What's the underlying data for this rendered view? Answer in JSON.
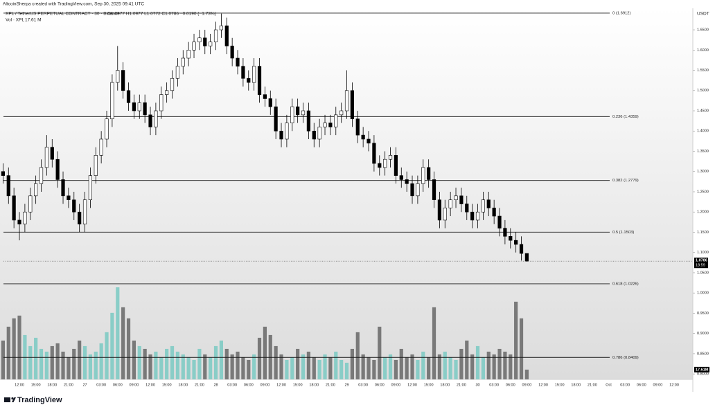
{
  "chart_data": {
    "type": "candlestick",
    "byline": "AltcoinSherpa created with TradingView.com, Sep 30, 2025 09:41 UTC",
    "symbol": "XPL / TetherUS PERPETUAL CONTRACT · 30 · Binance",
    "ohlc_legend": "O1.0977 H1.0977 L1.0772 C1.0786 −0.0190 (−1.73%)",
    "volume_legend": "Vol · XPL",
    "volume_legend_value": "17.61 M",
    "currency": "USDT",
    "countdown": "18:59",
    "last_volume_label": "17.61M",
    "brand": "TradingView",
    "up_color": "#ffffff",
    "down_color": "#000000",
    "border_color": "#000000",
    "volume_up_color": "#80cbc4",
    "volume_down_color": "#6e6e6e",
    "open": [
      1.3,
      1.29,
      1.24,
      1.18,
      1.17,
      1.2,
      1.24,
      1.27,
      1.31,
      1.36,
      1.33,
      1.28,
      1.24,
      1.23,
      1.2,
      1.17,
      1.23,
      1.29,
      1.34,
      1.38,
      1.43,
      1.52,
      1.55,
      1.5,
      1.47,
      1.45,
      1.47,
      1.44,
      1.41,
      1.45,
      1.49,
      1.5,
      1.53,
      1.56,
      1.58,
      1.6,
      1.62,
      1.63,
      1.61,
      1.62,
      1.65,
      1.66,
      1.61,
      1.58,
      1.56,
      1.53,
      1.52,
      1.56,
      1.49,
      1.48,
      1.46,
      1.4,
      1.38,
      1.42,
      1.46,
      1.44,
      1.45,
      1.4,
      1.38,
      1.41,
      1.42,
      1.41,
      1.44,
      1.45,
      1.5,
      1.43,
      1.39,
      1.38,
      1.37,
      1.32,
      1.31,
      1.33,
      1.34,
      1.29,
      1.28,
      1.27,
      1.24,
      1.27,
      1.31,
      1.28,
      1.23,
      1.18,
      1.21,
      1.23,
      1.24,
      1.22,
      1.2,
      1.18,
      1.2,
      1.23,
      1.21,
      1.19,
      1.16,
      1.14,
      1.13,
      1.12,
      1.0977
    ],
    "high": [
      1.32,
      1.31,
      1.26,
      1.2,
      1.22,
      1.26,
      1.29,
      1.33,
      1.39,
      1.38,
      1.35,
      1.3,
      1.26,
      1.25,
      1.22,
      1.25,
      1.31,
      1.36,
      1.4,
      1.45,
      1.54,
      1.61,
      1.57,
      1.52,
      1.49,
      1.49,
      1.49,
      1.46,
      1.47,
      1.51,
      1.52,
      1.55,
      1.58,
      1.6,
      1.62,
      1.64,
      1.65,
      1.65,
      1.64,
      1.67,
      1.69,
      1.68,
      1.63,
      1.6,
      1.58,
      1.55,
      1.58,
      1.58,
      1.51,
      1.5,
      1.48,
      1.42,
      1.44,
      1.48,
      1.48,
      1.47,
      1.47,
      1.42,
      1.43,
      1.44,
      1.44,
      1.46,
      1.47,
      1.55,
      1.52,
      1.45,
      1.41,
      1.4,
      1.39,
      1.34,
      1.35,
      1.36,
      1.36,
      1.31,
      1.3,
      1.29,
      1.29,
      1.33,
      1.33,
      1.3,
      1.25,
      1.23,
      1.25,
      1.26,
      1.26,
      1.24,
      1.22,
      1.22,
      1.25,
      1.25,
      1.23,
      1.21,
      1.18,
      1.16,
      1.15,
      1.14,
      1.0977
    ],
    "low": [
      1.27,
      1.22,
      1.16,
      1.13,
      1.15,
      1.18,
      1.22,
      1.25,
      1.29,
      1.31,
      1.26,
      1.22,
      1.21,
      1.18,
      1.15,
      1.15,
      1.21,
      1.27,
      1.32,
      1.36,
      1.41,
      1.5,
      1.48,
      1.45,
      1.43,
      1.43,
      1.42,
      1.39,
      1.39,
      1.43,
      1.47,
      1.48,
      1.51,
      1.54,
      1.56,
      1.58,
      1.6,
      1.59,
      1.59,
      1.6,
      1.63,
      1.59,
      1.56,
      1.54,
      1.51,
      1.5,
      1.5,
      1.47,
      1.46,
      1.44,
      1.38,
      1.36,
      1.36,
      1.4,
      1.42,
      1.42,
      1.38,
      1.36,
      1.36,
      1.39,
      1.39,
      1.39,
      1.42,
      1.43,
      1.41,
      1.37,
      1.36,
      1.35,
      1.3,
      1.29,
      1.29,
      1.31,
      1.27,
      1.26,
      1.25,
      1.22,
      1.22,
      1.25,
      1.26,
      1.21,
      1.16,
      1.16,
      1.19,
      1.21,
      1.2,
      1.18,
      1.16,
      1.16,
      1.18,
      1.19,
      1.17,
      1.14,
      1.12,
      1.11,
      1.1,
      1.08,
      1.0772
    ],
    "close": [
      1.29,
      1.24,
      1.18,
      1.17,
      1.2,
      1.24,
      1.27,
      1.31,
      1.36,
      1.33,
      1.28,
      1.24,
      1.23,
      1.2,
      1.17,
      1.23,
      1.29,
      1.34,
      1.38,
      1.43,
      1.52,
      1.55,
      1.5,
      1.47,
      1.45,
      1.47,
      1.44,
      1.41,
      1.45,
      1.49,
      1.5,
      1.53,
      1.56,
      1.58,
      1.6,
      1.62,
      1.63,
      1.61,
      1.62,
      1.65,
      1.66,
      1.61,
      1.58,
      1.56,
      1.53,
      1.52,
      1.56,
      1.49,
      1.48,
      1.46,
      1.4,
      1.38,
      1.42,
      1.46,
      1.44,
      1.45,
      1.4,
      1.38,
      1.41,
      1.42,
      1.41,
      1.44,
      1.45,
      1.5,
      1.43,
      1.39,
      1.38,
      1.37,
      1.32,
      1.31,
      1.33,
      1.34,
      1.29,
      1.28,
      1.27,
      1.24,
      1.27,
      1.31,
      1.28,
      1.23,
      1.18,
      1.21,
      1.23,
      1.24,
      1.22,
      1.2,
      1.18,
      1.2,
      1.23,
      1.21,
      1.19,
      1.16,
      1.14,
      1.13,
      1.12,
      1.0977,
      1.0786
    ],
    "volume": [
      70,
      95,
      110,
      115,
      80,
      60,
      75,
      55,
      50,
      60,
      65,
      50,
      40,
      55,
      70,
      60,
      45,
      50,
      65,
      85,
      120,
      166,
      130,
      110,
      70,
      60,
      55,
      45,
      50,
      40,
      55,
      60,
      50,
      45,
      40,
      35,
      55,
      45,
      40,
      60,
      70,
      55,
      45,
      50,
      40,
      35,
      45,
      75,
      95,
      80,
      60,
      45,
      35,
      40,
      55,
      45,
      50,
      40,
      35,
      45,
      40,
      50,
      35,
      30,
      55,
      85,
      45,
      40,
      35,
      95,
      40,
      45,
      35,
      55,
      40,
      45,
      35,
      50,
      40,
      130,
      45,
      50,
      40,
      35,
      55,
      70,
      45,
      60,
      40,
      50,
      45,
      55,
      50,
      45,
      140,
      110,
      17.61
    ],
    "ylim": [
      0.7866,
      1.6997
    ],
    "yticks": [
      {
        "value": 1.65,
        "label": "1.6500"
      },
      {
        "value": 1.6,
        "label": "1.6000"
      },
      {
        "value": 1.55,
        "label": "1.5500"
      },
      {
        "value": 1.5,
        "label": "1.5000"
      },
      {
        "value": 1.45,
        "label": "1.4500"
      },
      {
        "value": 1.4,
        "label": "1.4000"
      },
      {
        "value": 1.35,
        "label": "1.3500"
      },
      {
        "value": 1.3,
        "label": "1.3000"
      },
      {
        "value": 1.25,
        "label": "1.2500"
      },
      {
        "value": 1.2,
        "label": "1.2000"
      },
      {
        "value": 1.15,
        "label": "1.1500"
      },
      {
        "value": 1.1,
        "label": "1.1000"
      },
      {
        "value": 1.05,
        "label": "1.0500"
      },
      {
        "value": 1.0,
        "label": "1.0000"
      },
      {
        "value": 0.95,
        "label": "0.9500"
      },
      {
        "value": 0.9,
        "label": "0.9000"
      },
      {
        "value": 0.85,
        "label": "0.8500"
      },
      {
        "value": 0.8,
        "label": "0.8000"
      }
    ],
    "fib_levels": [
      {
        "value": 1.6912,
        "label": "0 (1.6912)"
      },
      {
        "value": 1.4359,
        "label": "0.236 (1.4359)"
      },
      {
        "value": 1.2779,
        "label": "0.382 (1.2779)"
      },
      {
        "value": 1.1503,
        "label": "0.5 (1.1503)"
      },
      {
        "value": 1.0226,
        "label": "0.618 (1.0226)"
      },
      {
        "value": 0.8409,
        "label": "0.786 (0.8409)"
      }
    ],
    "xtick_labels": [
      "12:00",
      "15:00",
      "18:00",
      "21:00",
      "27",
      "03:00",
      "06:00",
      "09:00",
      "12:00",
      "15:00",
      "18:00",
      "21:00",
      "28",
      "03:00",
      "06:00",
      "09:00",
      "12:00",
      "15:00",
      "18:00",
      "21:00",
      "29",
      "03:00",
      "06:00",
      "09:00",
      "12:00",
      "15:00",
      "18:00",
      "21:00",
      "30",
      "03:00",
      "06:00",
      "09:00",
      "12:00",
      "15:00",
      "18:00",
      "21:00",
      "Oct",
      "03:00",
      "06:00",
      "09:00",
      "12:00"
    ]
  }
}
